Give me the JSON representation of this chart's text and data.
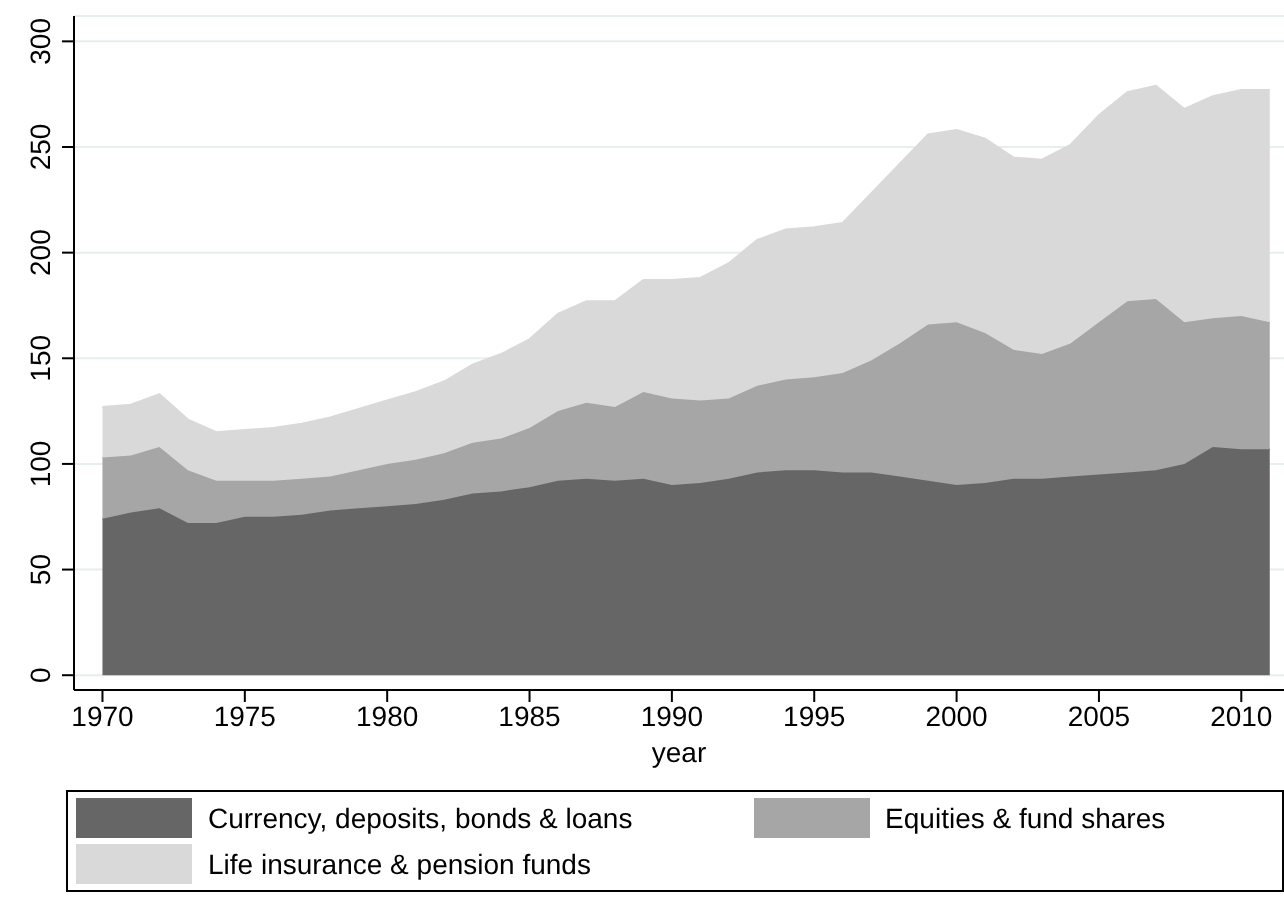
{
  "chart_data": {
    "type": "area",
    "stacked": true,
    "xlabel": "year",
    "x": [
      1970,
      1971,
      1972,
      1973,
      1974,
      1975,
      1976,
      1977,
      1978,
      1979,
      1980,
      1981,
      1982,
      1983,
      1984,
      1985,
      1986,
      1987,
      1988,
      1989,
      1990,
      1991,
      1992,
      1993,
      1994,
      1995,
      1996,
      1997,
      1998,
      1999,
      2000,
      2001,
      2002,
      2003,
      2004,
      2005,
      2006,
      2007,
      2008,
      2009,
      2010,
      2011
    ],
    "series": [
      {
        "name": "Currency, deposits, bonds & loans",
        "color": "#666666",
        "values": [
          74,
          77,
          79,
          72,
          72,
          75,
          75,
          76,
          78,
          79,
          80,
          81,
          83,
          86,
          87,
          89,
          92,
          93,
          92,
          93,
          90,
          91,
          93,
          96,
          97,
          97,
          96,
          96,
          94,
          92,
          90,
          91,
          93,
          93,
          94,
          95,
          96,
          97,
          100,
          108,
          107,
          107
        ]
      },
      {
        "name": "Equities & fund shares",
        "color": "#a6a6a6",
        "values": [
          29,
          27,
          29,
          25,
          20,
          17,
          17,
          17,
          16,
          18,
          20,
          21,
          22,
          24,
          25,
          28,
          33,
          36,
          35,
          41,
          41,
          39,
          38,
          41,
          43,
          44,
          47,
          53,
          63,
          74,
          77,
          71,
          61,
          59,
          63,
          72,
          81,
          81,
          67,
          61,
          63,
          60
        ]
      },
      {
        "name": "Life insurance & pension funds",
        "color": "#d9d9d9",
        "values": [
          24,
          24,
          25,
          24,
          23,
          24,
          25,
          26,
          28,
          29,
          30,
          32,
          34,
          37,
          40,
          42,
          46,
          48,
          50,
          53,
          56,
          58,
          64,
          69,
          71,
          71,
          71,
          79,
          85,
          90,
          91,
          92,
          91,
          92,
          94,
          98,
          99,
          101,
          101,
          105,
          107,
          110
        ]
      }
    ],
    "xlim": [
      1969,
      2011.5
    ],
    "xticks": [
      1970,
      1975,
      1980,
      1985,
      1990,
      1995,
      2000,
      2005,
      2010
    ],
    "ylim": [
      -7,
      312
    ],
    "yticks": [
      0,
      50,
      100,
      150,
      200,
      250,
      300
    ],
    "grid": "y",
    "legend": "bottom"
  }
}
